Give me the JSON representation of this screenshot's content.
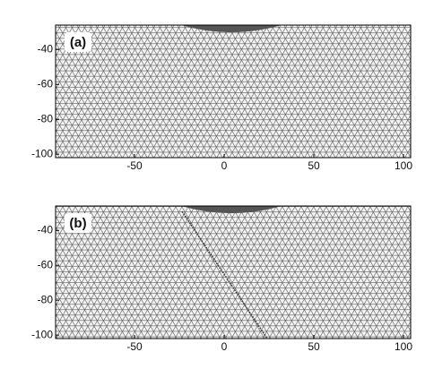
{
  "chart_data": [
    {
      "type": "mesh",
      "panel_label": "(a)",
      "xlim": [
        -94,
        104
      ],
      "ylim": [
        -102,
        -26
      ],
      "xticks": [
        -50,
        0,
        50,
        100
      ],
      "yticks": [
        -40,
        -60,
        -80,
        -100
      ]
    },
    {
      "type": "mesh",
      "panel_label": "(b)",
      "xlim": [
        -94,
        104
      ],
      "ylim": [
        -102,
        -26
      ],
      "xticks": [
        -50,
        0,
        50,
        100
      ],
      "yticks": [
        -40,
        -60,
        -80,
        -100
      ],
      "shear_band": true
    }
  ]
}
